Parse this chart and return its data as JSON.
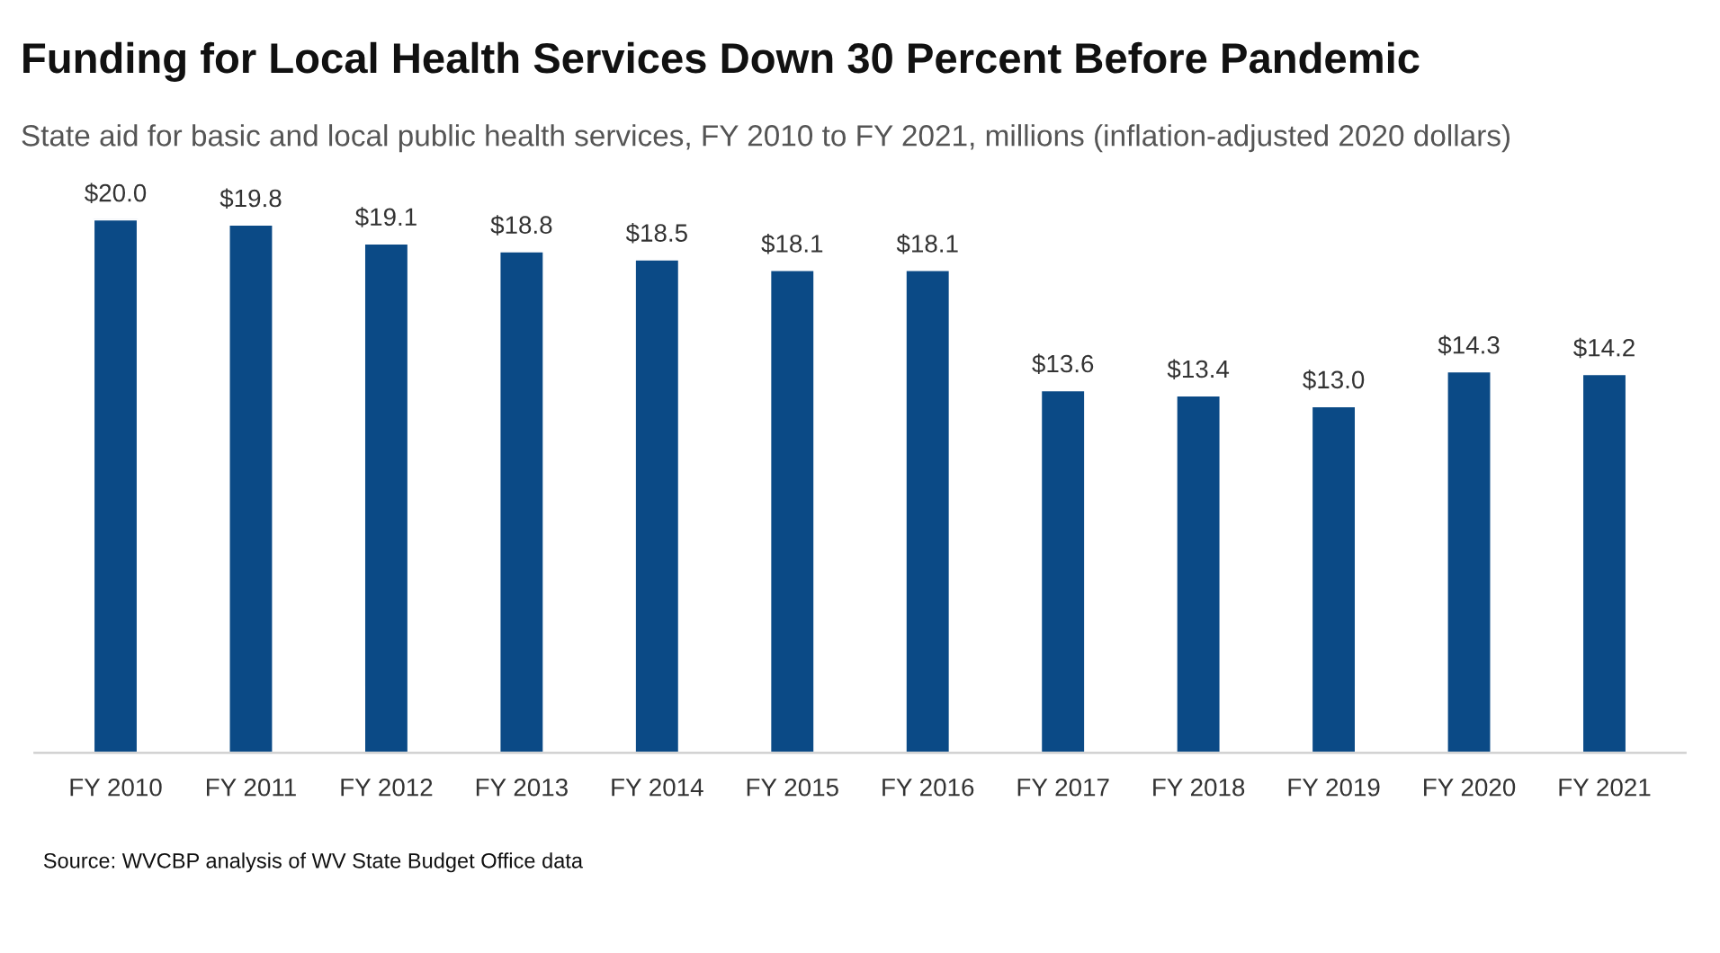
{
  "chart_data": {
    "type": "bar",
    "title": "Funding for Local Health Services Down 30 Percent Before Pandemic",
    "subtitle": "State aid for basic and local public health services, FY 2010 to FY 2021, millions (inflation-adjusted 2020 dollars)",
    "categories": [
      "FY 2010",
      "FY 2011",
      "FY 2012",
      "FY 2013",
      "FY 2014",
      "FY 2015",
      "FY 2016",
      "FY 2017",
      "FY 2018",
      "FY 2019",
      "FY 2020",
      "FY 2021"
    ],
    "values": [
      20.0,
      19.8,
      19.1,
      18.8,
      18.5,
      18.1,
      18.1,
      13.6,
      13.4,
      13.0,
      14.3,
      14.2
    ],
    "value_labels": [
      "$20.0",
      "$19.8",
      "$19.1",
      "$18.8",
      "$18.5",
      "$18.1",
      "$18.1",
      "$13.6",
      "$13.4",
      "$13.0",
      "$14.3",
      "$14.2"
    ],
    "color": "#0b4a86",
    "tick_labels": "x",
    "grid": false,
    "legend": false,
    "annotations": [
      "Source: WVCBP analysis of WV State Budget Office data"
    ]
  }
}
